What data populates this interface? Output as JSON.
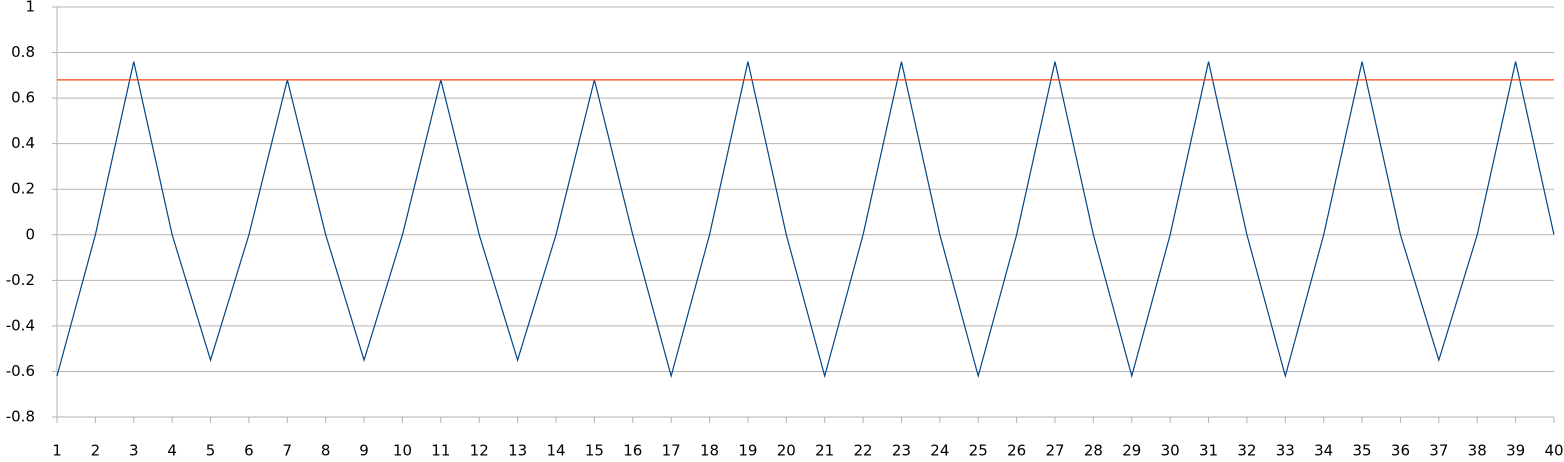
{
  "chart_data": {
    "type": "line",
    "x": [
      1,
      2,
      3,
      4,
      5,
      6,
      7,
      8,
      9,
      10,
      11,
      12,
      13,
      14,
      15,
      16,
      17,
      18,
      19,
      20,
      21,
      22,
      23,
      24,
      25,
      26,
      27,
      28,
      29,
      30,
      31,
      32,
      33,
      34,
      35,
      36,
      37,
      38,
      39,
      40
    ],
    "series": [
      {
        "color": "#004586",
        "values": [
          -0.62,
          0,
          0.76,
          0,
          -0.55,
          0,
          0.68,
          0,
          -0.55,
          0,
          0.68,
          0,
          -0.55,
          0,
          0.68,
          0,
          -0.62,
          0,
          0.76,
          0,
          -0.62,
          0,
          0.76,
          0,
          -0.62,
          0,
          0.76,
          0,
          -0.62,
          0,
          0.76,
          0,
          -0.62,
          0,
          0.76,
          0,
          -0.55,
          0,
          0.76,
          0
        ]
      },
      {
        "color": "#ff420e",
        "values": [
          0.68,
          0.68,
          0.68,
          0.68,
          0.68,
          0.68,
          0.68,
          0.68,
          0.68,
          0.68,
          0.68,
          0.68,
          0.68,
          0.68,
          0.68,
          0.68,
          0.68,
          0.68,
          0.68,
          0.68,
          0.68,
          0.68,
          0.68,
          0.68,
          0.68,
          0.68,
          0.68,
          0.68,
          0.68,
          0.68,
          0.68,
          0.68,
          0.68,
          0.68,
          0.68,
          0.68,
          0.68,
          0.68,
          0.68,
          0.68
        ]
      }
    ],
    "xlim": [
      1,
      40
    ],
    "xticks": [
      1,
      2,
      3,
      4,
      5,
      6,
      7,
      8,
      9,
      10,
      11,
      12,
      13,
      14,
      15,
      16,
      17,
      18,
      19,
      20,
      21,
      22,
      23,
      24,
      25,
      26,
      27,
      28,
      29,
      30,
      31,
      32,
      33,
      34,
      35,
      36,
      37,
      38,
      39,
      40
    ],
    "ylim": [
      -0.8,
      1
    ],
    "yticks": [
      -0.8,
      -0.6,
      -0.4,
      -0.2,
      0,
      0.2,
      0.4,
      0.6,
      0.8,
      1
    ],
    "grid": true
  }
}
